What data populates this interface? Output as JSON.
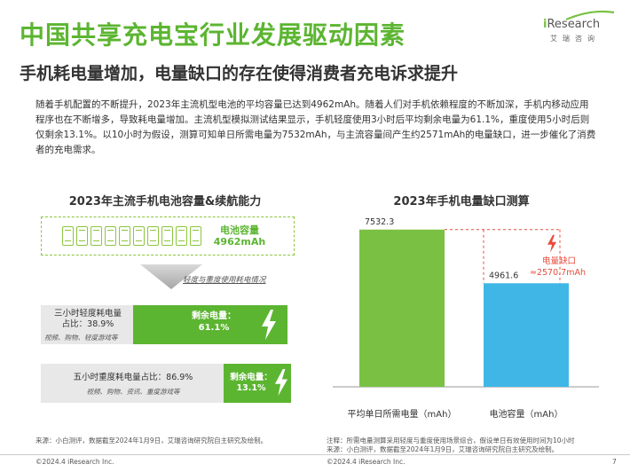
{
  "page": {
    "title": "中国共享充电宝行业发展驱动因素",
    "subtitle": "手机耗电量增加，电量缺口的存在使得消费者充电诉求提升",
    "paragraph": "随着手机配置的不断提升，2023年主流机型电池的平均容量已达到4962mAh。随着人们对手机依赖程度的不断加深，手机内移动应用程序也在不断增多，导致耗电量增加。主流机型模拟测试结果显示，手机轻度使用3小时后平均剩余电量为61.1%，重度使用5小时后则仅剩余13.1%。以10小时为假设，测算可知单日所需电量为7532mAh，与主流容量间产生约2571mAh的电量缺口，进一步催化了消费者的充电需求。",
    "page_number": "7",
    "copyright_left": "©2024.4 iResearch Inc.",
    "copyright_right": "©2024.4 iResearch Inc."
  },
  "logo": {
    "brand_i": "i",
    "brand_rest": "Research",
    "sub": "艾瑞咨询",
    "color": "#7ac143"
  },
  "left_panel": {
    "heading": "2023年主流手机电池容量&续航能力",
    "capacity_label_1": "电池容量",
    "capacity_label_2": "4962mAh",
    "phone_count": 10,
    "arrow_caption": "轻度与重度使用耗电情况",
    "light": {
      "line1": "三小时轻度耗电量",
      "line2": "占比：38.9%",
      "apps": "视频、购物、轻度游戏等",
      "remaining_label": "剩余电量：",
      "remaining_value": "61.1%"
    },
    "heavy": {
      "line1": "五小时重度耗电量占比：86.9%",
      "apps": "视频、购物、资讯、重度游戏等",
      "remaining_label": "剩余电量：",
      "remaining_value": "13.1%"
    },
    "source": "来源：小白测评，数据截至2024年1月9日，艾瑞咨询研究院自主研究及绘制。"
  },
  "chart_data": {
    "type": "bar",
    "title": "2023年手机电量缺口测算",
    "categories": [
      "平均单日所需电量（mAh）",
      "电池容量（mAh）"
    ],
    "values": [
      7532.3,
      4961.6
    ],
    "value_labels": [
      "7532.3",
      "4961.6"
    ],
    "colors": [
      "#7ac143",
      "#3fb6e6"
    ],
    "ylim": [
      0,
      8500
    ],
    "grid": false,
    "annotation": {
      "line1": "电量缺口",
      "line2": "≈2570.7mAh",
      "gap_value": 2570.7,
      "color": "#e84c3d"
    }
  },
  "right_notes": {
    "line1": "注释：所需电量测算采用轻度与重度使用场景综合，假设单日有效使用时间为10小时",
    "line2": "来源：小白测评，数据截至2024年1月9日，艾瑞咨询研究院自主研究及绘制。"
  },
  "colors": {
    "green": "#5cb531",
    "light_green": "#8cc63f",
    "blue": "#3fb6e6",
    "red": "#e84c3d",
    "grey": "#e8e8e8"
  }
}
